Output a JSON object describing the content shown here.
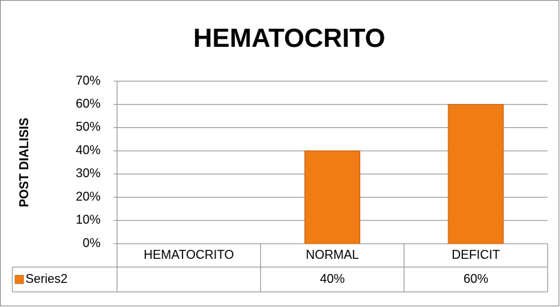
{
  "chart_data": {
    "type": "bar",
    "title": "HEMATOCRITO",
    "y_label": "POST DIALISIS",
    "categories": [
      "HEMATOCRITO",
      "NORMAL",
      "DEFICIT"
    ],
    "series": [
      {
        "name": "Series2",
        "color": "#f07c16",
        "values": [
          null,
          40,
          60
        ],
        "value_labels": [
          null,
          "40%",
          "60%"
        ]
      }
    ],
    "ylim": [
      0,
      70
    ],
    "yticks": [
      {
        "value": 0,
        "label": "0%"
      },
      {
        "value": 10,
        "label": "10%"
      },
      {
        "value": 20,
        "label": "20%"
      },
      {
        "value": 30,
        "label": "30%"
      },
      {
        "value": 40,
        "label": "40%"
      },
      {
        "value": 50,
        "label": "50%"
      },
      {
        "value": 60,
        "label": "60%"
      },
      {
        "value": 70,
        "label": "70%"
      }
    ],
    "grid": true,
    "data_table": true
  }
}
